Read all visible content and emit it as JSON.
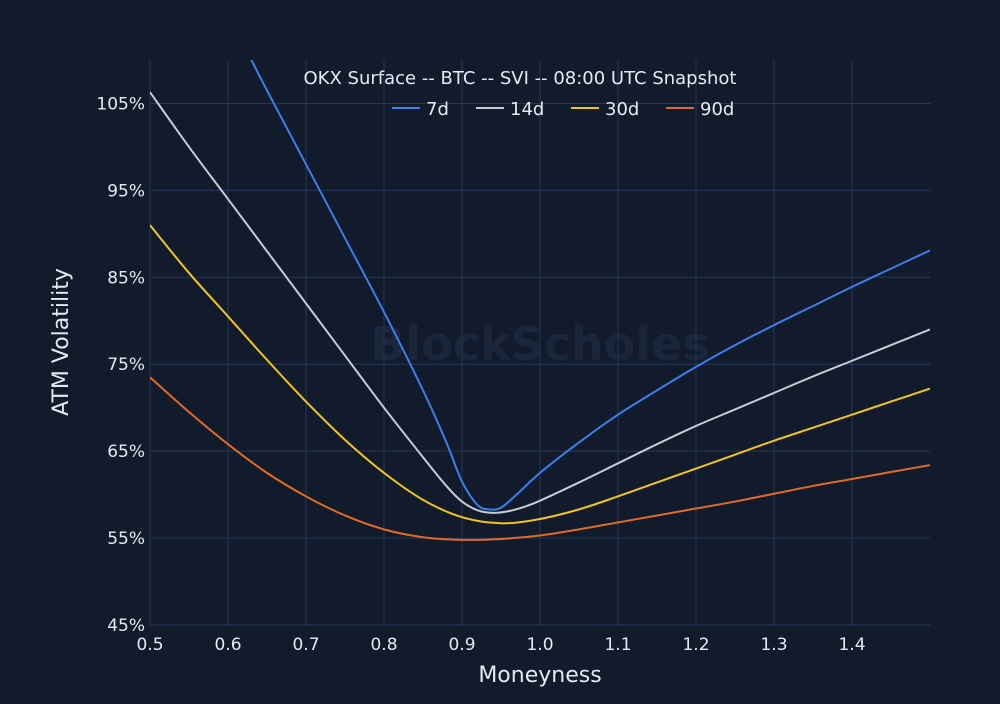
{
  "chart_data": {
    "type": "line",
    "title": "OKX Surface -- BTC -- SVI -- 08:00 UTC Snapshot",
    "xlabel": "Moneyness",
    "ylabel": "ATM Volatility",
    "watermark": "BlockScholes",
    "xlim": [
      0.5,
      1.5
    ],
    "ylim": [
      45,
      110
    ],
    "x_ticks": [
      0.5,
      0.6,
      0.7,
      0.8,
      0.9,
      1.0,
      1.1,
      1.2,
      1.3,
      1.4
    ],
    "x_tick_labels": [
      "0.5",
      "0.6",
      "0.7",
      "0.8",
      "0.9",
      "1.0",
      "1.1",
      "1.2",
      "1.3",
      "1.4"
    ],
    "y_ticks": [
      45,
      55,
      65,
      75,
      85,
      95,
      105
    ],
    "y_tick_labels": [
      "45%",
      "55%",
      "65%",
      "75%",
      "85%",
      "95%",
      "105%"
    ],
    "grid": true,
    "legend_position": "top-center",
    "background": "#111b2c",
    "grid_color": "#26375a",
    "series": [
      {
        "name": "7d",
        "color": "#3d7eea",
        "x": [
          0.63,
          0.65,
          0.7,
          0.75,
          0.8,
          0.85,
          0.88,
          0.9,
          0.92,
          0.935,
          0.95,
          0.97,
          1.0,
          1.05,
          1.1,
          1.15,
          1.2,
          1.25,
          1.3,
          1.35,
          1.4,
          1.45,
          1.5
        ],
        "y": [
          110.0,
          106.5,
          98.0,
          89.5,
          81.0,
          72.0,
          66.0,
          61.5,
          58.8,
          58.3,
          58.5,
          60.0,
          62.5,
          66.0,
          69.2,
          72.0,
          74.7,
          77.2,
          79.5,
          81.7,
          83.9,
          86.0,
          88.1
        ]
      },
      {
        "name": "14d",
        "color": "#c6cbd4",
        "x": [
          0.5,
          0.55,
          0.6,
          0.65,
          0.7,
          0.75,
          0.8,
          0.85,
          0.88,
          0.9,
          0.92,
          0.94,
          0.96,
          0.98,
          1.0,
          1.05,
          1.1,
          1.15,
          1.2,
          1.25,
          1.3,
          1.35,
          1.4,
          1.45,
          1.5
        ],
        "y": [
          106.3,
          100.0,
          94.0,
          88.0,
          82.0,
          76.0,
          70.0,
          64.3,
          61.0,
          59.2,
          58.2,
          57.9,
          58.1,
          58.6,
          59.3,
          61.4,
          63.6,
          65.8,
          67.9,
          69.8,
          71.7,
          73.6,
          75.4,
          77.2,
          79.0
        ]
      },
      {
        "name": "30d",
        "color": "#f2c420",
        "x": [
          0.5,
          0.55,
          0.6,
          0.65,
          0.7,
          0.75,
          0.8,
          0.85,
          0.9,
          0.95,
          1.0,
          1.05,
          1.1,
          1.15,
          1.2,
          1.25,
          1.3,
          1.35,
          1.4,
          1.45,
          1.5
        ],
        "y": [
          91.0,
          85.5,
          80.5,
          75.5,
          70.7,
          66.3,
          62.5,
          59.4,
          57.4,
          56.7,
          57.2,
          58.3,
          59.8,
          61.4,
          63.0,
          64.6,
          66.2,
          67.7,
          69.2,
          70.7,
          72.2
        ]
      },
      {
        "name": "90d",
        "color": "#e06a26",
        "x": [
          0.5,
          0.55,
          0.6,
          0.65,
          0.7,
          0.75,
          0.8,
          0.85,
          0.9,
          0.95,
          1.0,
          1.05,
          1.1,
          1.15,
          1.2,
          1.25,
          1.3,
          1.35,
          1.4,
          1.45,
          1.5
        ],
        "y": [
          73.5,
          69.5,
          65.8,
          62.5,
          59.8,
          57.6,
          56.0,
          55.1,
          54.8,
          54.9,
          55.3,
          56.0,
          56.8,
          57.6,
          58.4,
          59.2,
          60.1,
          61.0,
          61.8,
          62.6,
          63.4
        ]
      }
    ]
  }
}
